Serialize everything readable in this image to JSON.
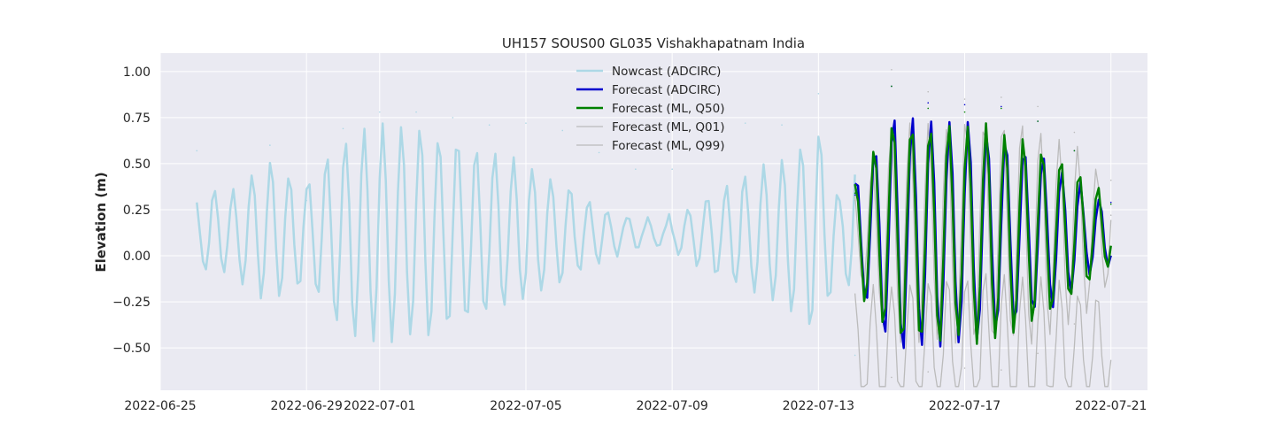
{
  "chart_data": {
    "type": "line",
    "title": "UH157 SOUS00 GL035 Vishakhapatnam India",
    "xlabel": "",
    "ylabel": "Elevation (m)",
    "xlim": [
      "2022-06-25",
      "2022-07-22"
    ],
    "ylim": [
      -0.73,
      1.1
    ],
    "x_ticks": [
      "2022-06-25",
      "2022-06-29",
      "2022-07-01",
      "2022-07-05",
      "2022-07-09",
      "2022-07-13",
      "2022-07-17",
      "2022-07-21"
    ],
    "y_ticks": [
      -0.5,
      -0.25,
      0.0,
      0.25,
      0.5,
      0.75,
      1.0
    ],
    "y_tick_labels": [
      "−0.50",
      "−0.25",
      "0.00",
      "0.25",
      "0.50",
      "0.75",
      "1.00"
    ],
    "grid": true,
    "legend_position": "top-center",
    "series": [
      {
        "name": "Nowcast (ADCIRC)",
        "color": "#add8e6",
        "x": [
          "2022-06-26",
          "2022-06-27",
          "2022-06-28",
          "2022-06-29",
          "2022-06-30",
          "2022-07-01",
          "2022-07-02",
          "2022-07-03",
          "2022-07-04",
          "2022-07-05",
          "2022-07-06",
          "2022-07-07",
          "2022-07-08",
          "2022-07-09",
          "2022-07-10",
          "2022-07-11",
          "2022-07-12",
          "2022-07-13",
          "2022-07-14"
        ],
        "y": [
          0.57,
          0.36,
          0.6,
          0.3,
          0.69,
          0.78,
          0.78,
          0.75,
          0.71,
          0.72,
          0.68,
          0.56,
          0.47,
          0.47,
          0.62,
          0.72,
          0.71,
          0.88,
          -0.54
        ]
      },
      {
        "name": "Forecast (ADCIRC)",
        "color": "#0000cd",
        "x": [
          "2022-07-14",
          "2022-07-15",
          "2022-07-16",
          "2022-07-17",
          "2022-07-18",
          "2022-07-19",
          "2022-07-20",
          "2022-07-21"
        ],
        "y": [
          0.33,
          0.92,
          0.83,
          0.82,
          0.81,
          0.73,
          0.57,
          0.29
        ]
      },
      {
        "name": "Forecast (ML, Q50)",
        "color": "#008000",
        "x": [
          "2022-07-14",
          "2022-07-15",
          "2022-07-16",
          "2022-07-17",
          "2022-07-18",
          "2022-07-19",
          "2022-07-20",
          "2022-07-21"
        ],
        "y": [
          0.34,
          0.92,
          0.8,
          0.78,
          0.8,
          0.73,
          0.57,
          0.28
        ]
      },
      {
        "name": "Forecast (ML, Q01)",
        "color": "#bbbbbb",
        "x": [
          "2022-07-14",
          "2022-07-15",
          "2022-07-16",
          "2022-07-17",
          "2022-07-18",
          "2022-07-19",
          "2022-07-20",
          "2022-07-21"
        ],
        "y": [
          0.3,
          -0.66,
          -0.63,
          -0.61,
          -0.62,
          -0.53,
          -0.37,
          0.22
        ]
      },
      {
        "name": "Forecast (ML, Q99)",
        "color": "#bbbbbb",
        "x": [
          "2022-07-14",
          "2022-07-15",
          "2022-07-16",
          "2022-07-17",
          "2022-07-18",
          "2022-07-19",
          "2022-07-20",
          "2022-07-21"
        ],
        "y": [
          0.35,
          1.01,
          0.89,
          0.85,
          0.86,
          0.81,
          0.67,
          0.41
        ]
      }
    ]
  }
}
